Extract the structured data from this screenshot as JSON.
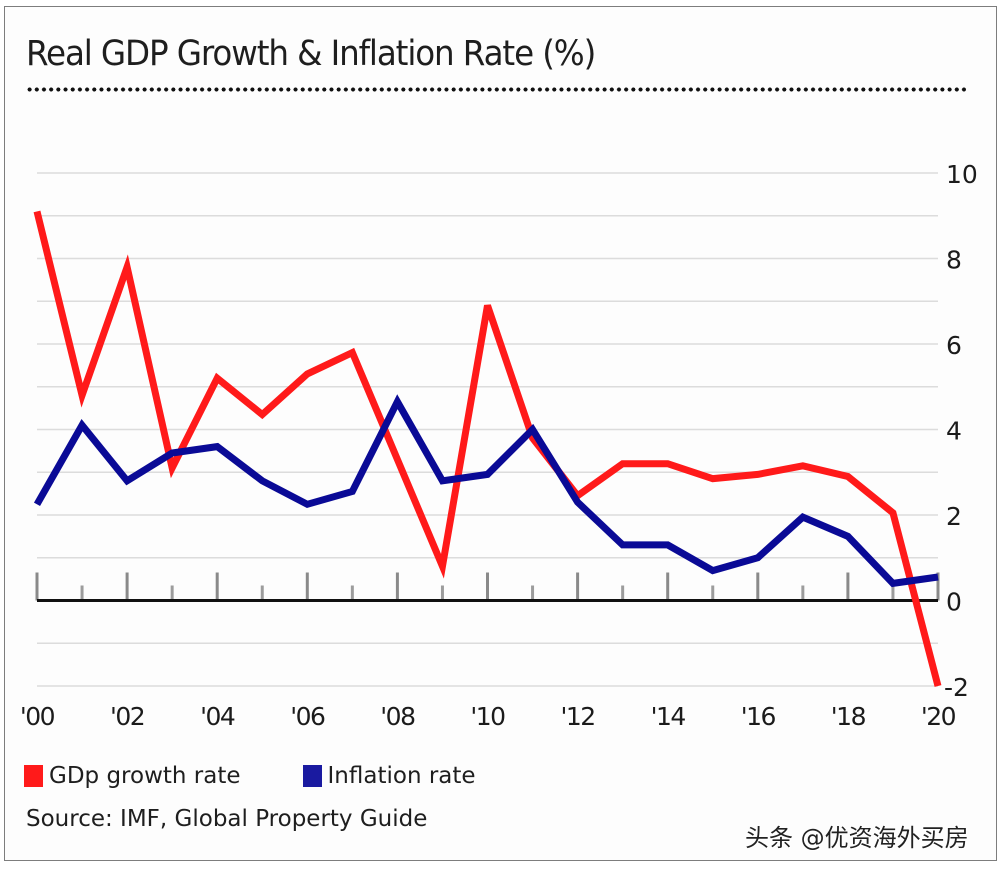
{
  "chart_data": {
    "type": "line",
    "title": "Real GDP Growth & Inflation Rate (%)",
    "xlabel": "",
    "ylabel": "",
    "x": [
      2000,
      2001,
      2002,
      2003,
      2004,
      2005,
      2006,
      2007,
      2008,
      2009,
      2010,
      2011,
      2012,
      2013,
      2014,
      2015,
      2016,
      2017,
      2018,
      2019,
      2020
    ],
    "xlim": [
      2000,
      2020
    ],
    "ylim": [
      -2,
      10
    ],
    "x_tick_values": [
      2000,
      2002,
      2004,
      2006,
      2008,
      2010,
      2012,
      2014,
      2016,
      2018,
      2020
    ],
    "x_tick_labels": [
      "'00",
      "'02",
      "'04",
      "'06",
      "'08",
      "'10",
      "'12",
      "'14",
      "'16",
      "'18",
      "'20"
    ],
    "y_tick_values": [
      10,
      8,
      6,
      4,
      2,
      0,
      -2
    ],
    "y_tick_labels": [
      "10",
      "8",
      "6",
      "4",
      "2",
      "0",
      "-2"
    ],
    "y_axis_side": "right",
    "grid": true,
    "grid_step": 1,
    "legend_position": "bottom-left",
    "series": [
      {
        "name": "GDp growth rate",
        "color": "#ff1a1a",
        "values": [
          9.1,
          4.8,
          7.8,
          3.1,
          5.2,
          4.35,
          5.3,
          5.8,
          3.3,
          0.8,
          6.9,
          3.8,
          2.45,
          3.2,
          3.2,
          2.85,
          2.95,
          3.15,
          2.9,
          2.05,
          -2.0
        ]
      },
      {
        "name": "Inflation rate",
        "color": "#0a0a96",
        "values": [
          2.25,
          4.1,
          2.8,
          3.45,
          3.6,
          2.8,
          2.25,
          2.55,
          4.65,
          2.8,
          2.95,
          4.0,
          2.3,
          1.3,
          1.3,
          0.7,
          1.0,
          1.95,
          1.5,
          0.4,
          0.55
        ]
      }
    ]
  },
  "legend": {
    "items": [
      {
        "label": "GDp growth rate",
        "color": "#ff1a1a"
      },
      {
        "label": "Inflation rate",
        "color": "#1a1aa0"
      }
    ]
  },
  "source": "Source: IMF, Global Property Guide",
  "watermark": "头条 @优资海外买房"
}
